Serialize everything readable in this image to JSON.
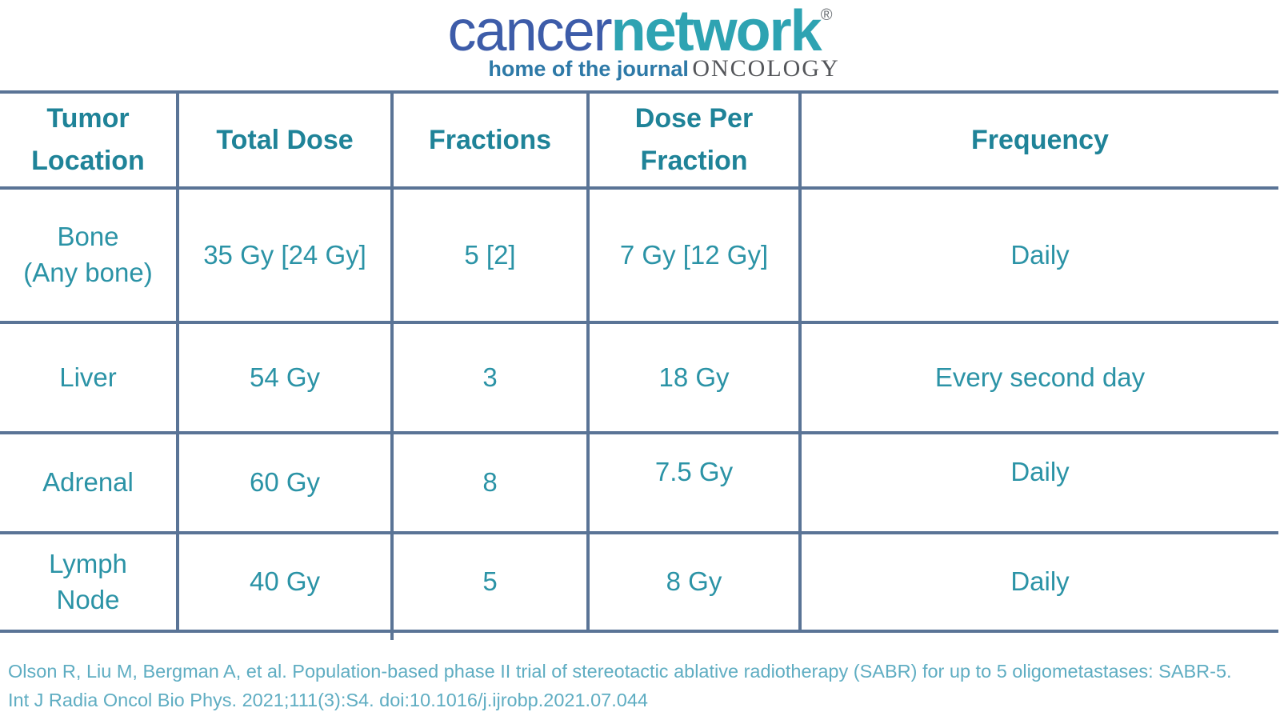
{
  "logo": {
    "brand_primary": "cancer",
    "brand_secondary": "network",
    "registered_mark": "®",
    "tagline_prefix": "home of the journal",
    "tagline_journal": "ONCOLOGY"
  },
  "table": {
    "columns": [
      "Tumor\nLocation",
      "Total Dose",
      "Fractions",
      "Dose Per\nFraction",
      "Frequency"
    ],
    "rows": [
      {
        "cells": [
          "Bone\n(Any bone)",
          "35 Gy [24 Gy]",
          "5 [2]",
          "7 Gy [12 Gy]",
          "Daily"
        ]
      },
      {
        "cells": [
          "Liver",
          "54 Gy",
          "3",
          "18 Gy",
          "Every second day"
        ]
      },
      {
        "cells": [
          "Adrenal",
          "60 Gy",
          "8",
          "7.5 Gy",
          "Daily"
        ]
      },
      {
        "cells": [
          "Lymph\nNode",
          "40 Gy",
          "5",
          "8 Gy",
          "Daily"
        ]
      }
    ]
  },
  "citation": {
    "line1": "Olson R, Liu M, Bergman A, et al. Population-based phase II trial of stereotactic ablative radiotherapy (SABR) for up to 5 oligometastases: SABR-5.",
    "line2": "Int J Radia Oncol Bio Phys. 2021;111(3):S4. doi:10.1016/j.ijrobp.2021.07.044"
  },
  "colors": {
    "table_border": "#5a7496",
    "header_text": "#1f8398",
    "cell_text": "#2b93a6",
    "citation_text": "#5fadc2",
    "logo_blue": "#3d5ca9",
    "logo_teal": "#2ea3b2",
    "tagline_blue": "#2d79a7",
    "journal_gray": "#54565a"
  },
  "chart_data": {
    "type": "table",
    "columns": [
      "Tumor Location",
      "Total Dose",
      "Fractions",
      "Dose Per Fraction",
      "Frequency"
    ],
    "rows": [
      [
        "Bone (Any bone)",
        "35 Gy [24 Gy]",
        "5 [2]",
        "7 Gy [12 Gy]",
        "Daily"
      ],
      [
        "Liver",
        "54 Gy",
        "3",
        "18 Gy",
        "Every second day"
      ],
      [
        "Adrenal",
        "60 Gy",
        "8",
        "7.5 Gy",
        "Daily"
      ],
      [
        "Lymph Node",
        "40 Gy",
        "5",
        "8 Gy",
        "Daily"
      ]
    ]
  }
}
